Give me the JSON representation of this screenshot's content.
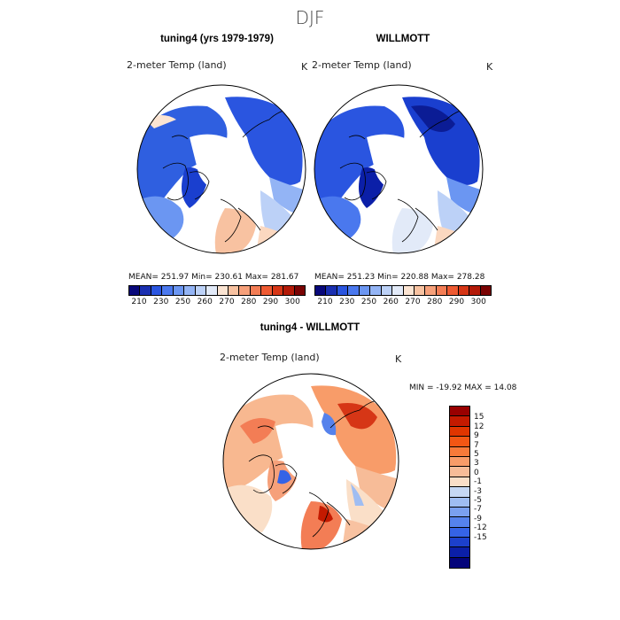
{
  "title": "DJF",
  "panels": {
    "left": {
      "title": "tuning4 (yrs 1979-1979)",
      "variable": "2-meter Temp (land)",
      "units": "K",
      "stats": "MEAN= 251.97   Min= 230.61   Max= 281.67"
    },
    "right": {
      "title": "WILLMOTT",
      "variable": "2-meter Temp (land)",
      "units": "K",
      "stats": "MEAN= 251.23   Min= 220.88   Max= 278.28"
    },
    "diff": {
      "title": "tuning4 - WILLMOTT",
      "variable": "2-meter Temp (land)",
      "units": "K",
      "stats": "MIN = -19.92 MAX =  14.08"
    }
  },
  "temp_colorbar": {
    "ticks": [
      "210",
      "230",
      "250",
      "260",
      "270",
      "280",
      "290",
      "300"
    ],
    "colors": [
      "#08087a",
      "#1a2fb0",
      "#2a55e0",
      "#4a78ee",
      "#6b96f2",
      "#93b4f5",
      "#bcd1f7",
      "#e2eaf8",
      "#fbe4d2",
      "#f8c2a1",
      "#f6a07a",
      "#f37d55",
      "#ee5a32",
      "#d63616",
      "#b31a08",
      "#7a0303"
    ]
  },
  "diff_colorbar": {
    "ticks": [
      "15",
      "12",
      "9",
      "7",
      "5",
      "3",
      "0",
      "-1",
      "-3",
      "-5",
      "-7",
      "-9",
      "-12",
      "-15"
    ],
    "colors": [
      "#990000",
      "#c41a00",
      "#e03500",
      "#f35614",
      "#f77a3a",
      "#f89c69",
      "#f7bc98",
      "#fadfc8",
      "#c6d8f4",
      "#9fbdf2",
      "#7aa0ef",
      "#5582ec",
      "#3563e6",
      "#1c40cc",
      "#0b1fa8",
      "#03037a"
    ]
  }
}
